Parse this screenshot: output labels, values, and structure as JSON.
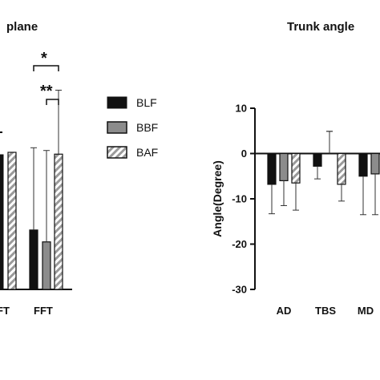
{
  "chart_data": [
    {
      "type": "bar",
      "title": "plane",
      "categories": [
        "FT",
        "FFT"
      ],
      "series": [
        {
          "name": "BLF",
          "values": [
            null,
            6.5
          ],
          "errors": [
            null,
            9.0
          ]
        },
        {
          "name": "BBF",
          "values": [
            null,
            5.2
          ],
          "errors": [
            null,
            10.0
          ]
        },
        {
          "name": "BAF",
          "values": [
            15.0,
            14.8
          ],
          "errors": [
            null,
            7.0
          ]
        }
      ],
      "annotations": [
        "*",
        "**"
      ],
      "legend_position": "right"
    },
    {
      "type": "bar",
      "title": "Trunk angle",
      "ylabel": "Angle(Degree)",
      "ylim": [
        -30,
        10
      ],
      "yticks": [
        "10",
        "0",
        "-10",
        "-20",
        "-30"
      ],
      "yticks_values": [
        10,
        0,
        -10,
        -20,
        -30
      ],
      "categories": [
        "AD",
        "TBS",
        "MD"
      ],
      "series": [
        {
          "name": "BLF",
          "values": [
            -6.8,
            -2.8,
            -5.0
          ],
          "errors": [
            6.5,
            2.8,
            8.5
          ]
        },
        {
          "name": "BBF",
          "values": [
            -6.0,
            0,
            -4.5
          ],
          "errors": [
            5.5,
            4.9,
            9.0
          ]
        },
        {
          "name": "BAF",
          "values": [
            -6.5,
            -6.8,
            null
          ],
          "errors": [
            6.0,
            3.7,
            null
          ]
        }
      ]
    }
  ],
  "legend": {
    "items": [
      {
        "label": "BLF",
        "style": "solid",
        "color": "#111111"
      },
      {
        "label": "BBF",
        "style": "solid",
        "color": "#8c8c8c"
      },
      {
        "label": "BAF",
        "style": "hatched",
        "color": "#9a9a9a"
      }
    ]
  }
}
